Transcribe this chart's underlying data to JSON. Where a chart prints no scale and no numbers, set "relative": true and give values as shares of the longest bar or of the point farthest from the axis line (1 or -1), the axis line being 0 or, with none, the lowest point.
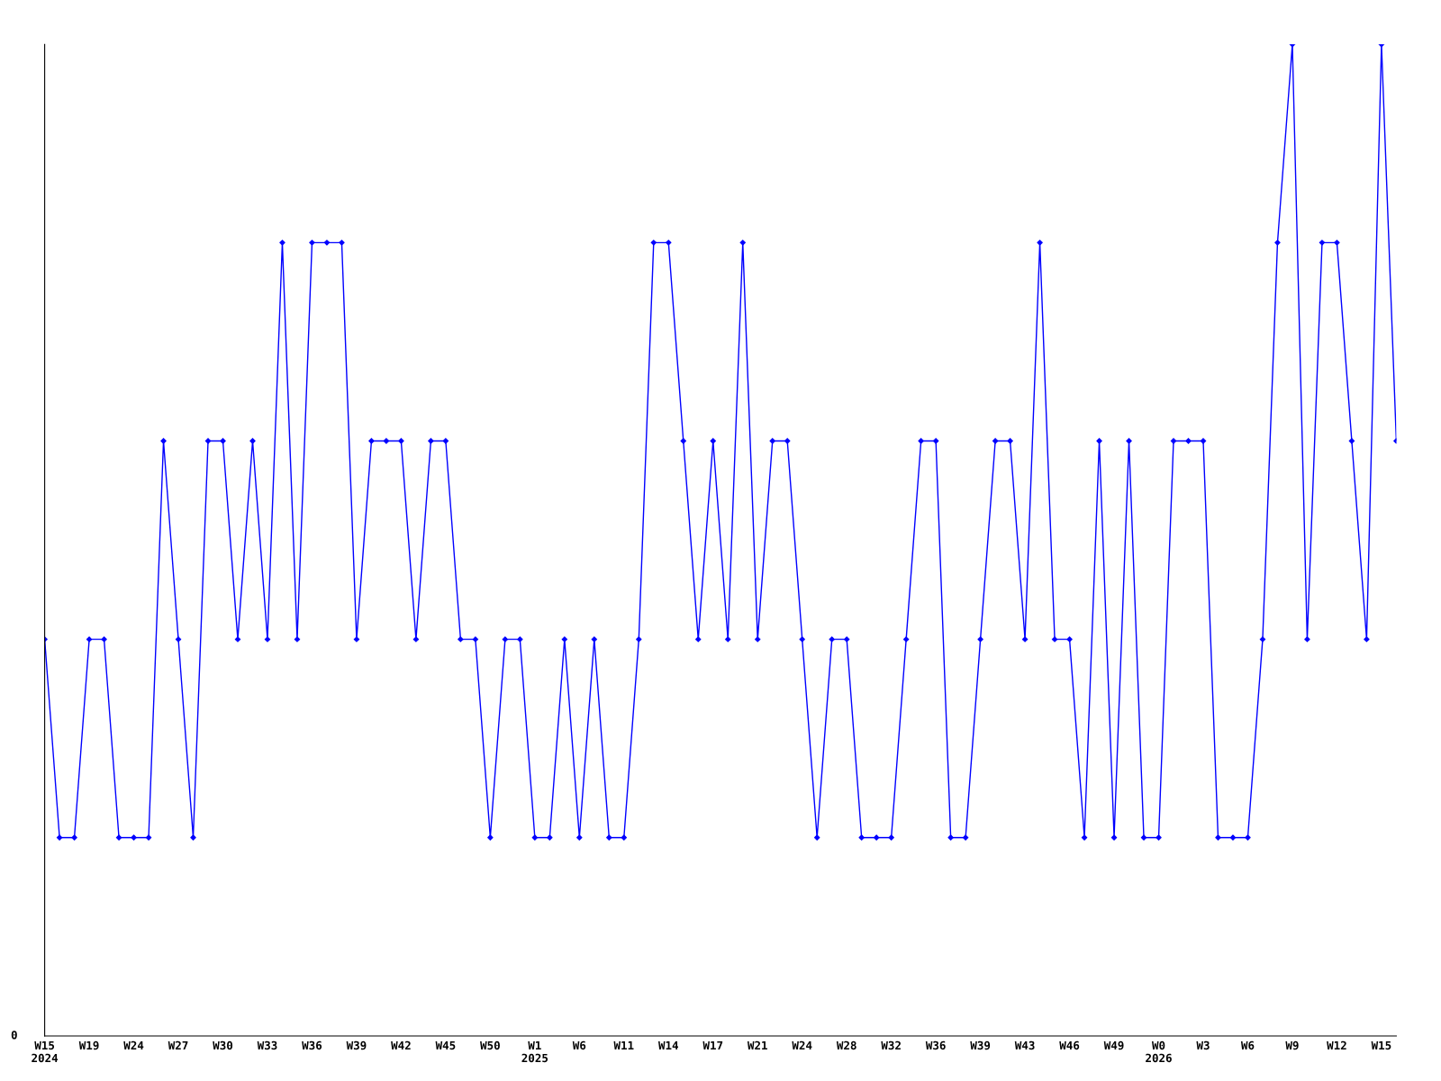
{
  "chart_data": {
    "type": "line",
    "relative": true,
    "marker": "diamond",
    "line_style": "solid",
    "grid": false,
    "legend": false,
    "categories": [
      "W15\n2024",
      null,
      null,
      "W19",
      null,
      null,
      "W24",
      null,
      null,
      "W27",
      null,
      null,
      "W30",
      null,
      null,
      "W33",
      null,
      null,
      "W36",
      null,
      null,
      "W39",
      null,
      null,
      "W42",
      null,
      null,
      "W45",
      null,
      null,
      "W50",
      null,
      null,
      "W1\n2025",
      null,
      null,
      "W6",
      null,
      null,
      "W11",
      null,
      null,
      "W14",
      null,
      null,
      "W17",
      null,
      null,
      "W21",
      null,
      null,
      "W24",
      null,
      null,
      "W28",
      null,
      null,
      "W32",
      null,
      null,
      "W36",
      null,
      null,
      "W39",
      null,
      null,
      "W43",
      null,
      null,
      "W46",
      null,
      null,
      "W49",
      null,
      null,
      "W0\n2026",
      null,
      null,
      "W3",
      null,
      null,
      "W6",
      null,
      null,
      "W9",
      null,
      null,
      "W12",
      null,
      null,
      "W15",
      null
    ],
    "series": [
      {
        "color": "#0000ff",
        "values": [
          0.4,
          0.2,
          0.2,
          0.4,
          0.4,
          0.2,
          0.2,
          0.2,
          0.6,
          0.4,
          0.2,
          0.6,
          0.6,
          0.4,
          0.6,
          0.4,
          0.8,
          0.4,
          0.8,
          0.8,
          0.8,
          0.4,
          0.6,
          0.6,
          0.6,
          0.4,
          0.6,
          0.6,
          0.4,
          0.4,
          0.2,
          0.4,
          0.4,
          0.2,
          0.2,
          0.4,
          0.2,
          0.4,
          0.2,
          0.2,
          0.4,
          0.8,
          0.8,
          0.6,
          0.4,
          0.6,
          0.4,
          0.8,
          0.4,
          0.6,
          0.6,
          0.4,
          0.2,
          0.4,
          0.4,
          0.2,
          0.2,
          0.2,
          0.4,
          0.6,
          0.6,
          0.2,
          0.2,
          0.4,
          0.6,
          0.6,
          0.4,
          0.8,
          0.4,
          0.4,
          0.2,
          0.6,
          0.2,
          0.6,
          0.2,
          0.2,
          0.6,
          0.6,
          0.6,
          0.2,
          0.2,
          0.2,
          0.4,
          0.8,
          1,
          0.4,
          0.8,
          0.8,
          0.6,
          0.4,
          1,
          0.6
        ]
      }
    ],
    "annotations": [
      "0"
    ]
  }
}
